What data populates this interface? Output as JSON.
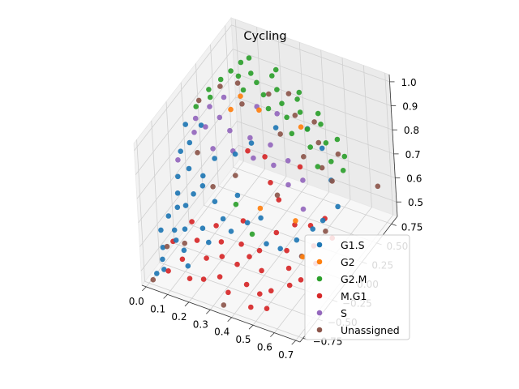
{
  "chart_data": {
    "type": "scatter",
    "projection": "3d",
    "title": "Cycling",
    "xlabel": "",
    "ylabel": "",
    "zlabel": "",
    "xlim": [
      -0.02,
      0.72
    ],
    "ylim": [
      -0.8,
      0.85
    ],
    "zlim": [
      0.44,
      1.03
    ],
    "x_ticks": [
      "0.0",
      "0.1",
      "0.2",
      "0.3",
      "0.4",
      "0.5",
      "0.6",
      "0.7"
    ],
    "x_tick_values": [
      0.0,
      0.1,
      0.2,
      0.3,
      0.4,
      0.5,
      0.6,
      0.7
    ],
    "y_ticks": [
      "−0.75",
      "−0.50",
      "−0.25",
      "0.00",
      "0.25",
      "0.50",
      "0.75"
    ],
    "y_tick_values": [
      -0.75,
      -0.5,
      -0.25,
      0.0,
      0.25,
      0.5,
      0.75
    ],
    "z_ticks": [
      "0.5",
      "0.6",
      "0.7",
      "0.8",
      "0.9",
      "1.0"
    ],
    "z_tick_values": [
      0.5,
      0.6,
      0.7,
      0.8,
      0.9,
      1.0
    ],
    "grid": true,
    "legend_position": "lower-right",
    "series": [
      {
        "name": "G1.S",
        "color": "#1f77b4",
        "points": [
          [
            0.02,
            -0.2,
            0.82
          ],
          [
            0.03,
            -0.3,
            0.75
          ],
          [
            0.04,
            -0.35,
            0.7
          ],
          [
            0.05,
            -0.4,
            0.66
          ],
          [
            0.02,
            -0.45,
            0.63
          ],
          [
            0.06,
            -0.5,
            0.6
          ],
          [
            0.08,
            -0.55,
            0.58
          ],
          [
            0.03,
            -0.6,
            0.55
          ],
          [
            0.1,
            -0.3,
            0.7
          ],
          [
            0.12,
            -0.2,
            0.75
          ],
          [
            0.15,
            -0.1,
            0.8
          ],
          [
            0.05,
            -0.15,
            0.85
          ],
          [
            0.07,
            -0.25,
            0.78
          ],
          [
            0.09,
            -0.4,
            0.68
          ],
          [
            0.11,
            -0.5,
            0.62
          ],
          [
            0.04,
            -0.65,
            0.52
          ],
          [
            0.06,
            -0.7,
            0.5
          ],
          [
            0.02,
            -0.1,
            0.9
          ],
          [
            0.2,
            -0.3,
            0.7
          ],
          [
            0.18,
            -0.45,
            0.63
          ],
          [
            0.22,
            -0.5,
            0.6
          ],
          [
            0.25,
            -0.35,
            0.66
          ],
          [
            0.08,
            -0.05,
            0.9
          ],
          [
            0.13,
            -0.6,
            0.57
          ],
          [
            0.16,
            -0.65,
            0.53
          ],
          [
            0.28,
            -0.2,
            0.72
          ],
          [
            0.3,
            -0.4,
            0.64
          ],
          [
            0.01,
            -0.55,
            0.6
          ],
          [
            0.03,
            -0.72,
            0.48
          ],
          [
            0.14,
            -0.28,
            0.74
          ],
          [
            0.35,
            -0.3,
            0.66
          ],
          [
            0.4,
            -0.25,
            0.68
          ],
          [
            0.45,
            -0.35,
            0.62
          ],
          [
            0.5,
            -0.3,
            0.6
          ],
          [
            0.55,
            -0.2,
            0.62
          ],
          [
            0.6,
            -0.1,
            0.65
          ],
          [
            0.62,
            0.0,
            0.66
          ],
          [
            0.65,
            0.15,
            0.68
          ],
          [
            0.58,
            0.3,
            0.72
          ],
          [
            0.5,
            0.45,
            0.78
          ],
          [
            0.42,
            0.5,
            0.82
          ],
          [
            0.36,
            0.2,
            0.9
          ],
          [
            0.3,
            0.0,
            0.88
          ],
          [
            0.25,
            -0.1,
            0.85
          ]
        ]
      },
      {
        "name": "G2",
        "color": "#ff7f0e",
        "points": [
          [
            0.18,
            0.1,
            0.95
          ],
          [
            0.3,
            0.15,
            0.97
          ],
          [
            0.55,
            -0.2,
            0.7
          ],
          [
            0.4,
            -0.25,
            0.72
          ],
          [
            0.62,
            -0.35,
            0.62
          ],
          [
            0.2,
            0.2,
            0.98
          ],
          [
            0.45,
            0.3,
            0.9
          ]
        ]
      },
      {
        "name": "G2.M",
        "color": "#2ca02c",
        "points": [
          [
            0.05,
            0.2,
            0.96
          ],
          [
            0.08,
            0.3,
            0.98
          ],
          [
            0.1,
            0.4,
            0.99
          ],
          [
            0.12,
            0.5,
            1.0
          ],
          [
            0.15,
            0.35,
            1.0
          ],
          [
            0.18,
            0.45,
            0.99
          ],
          [
            0.2,
            0.25,
            0.99
          ],
          [
            0.22,
            0.4,
            0.98
          ],
          [
            0.25,
            0.55,
            0.97
          ],
          [
            0.28,
            0.3,
            0.98
          ],
          [
            0.3,
            0.45,
            0.96
          ],
          [
            0.33,
            0.2,
            0.97
          ],
          [
            0.35,
            0.35,
            0.95
          ],
          [
            0.38,
            0.5,
            0.93
          ],
          [
            0.4,
            0.25,
            0.94
          ],
          [
            0.42,
            0.4,
            0.92
          ],
          [
            0.45,
            0.15,
            0.92
          ],
          [
            0.48,
            0.3,
            0.9
          ],
          [
            0.5,
            0.45,
            0.88
          ],
          [
            0.52,
            0.2,
            0.87
          ],
          [
            0.55,
            0.35,
            0.85
          ],
          [
            0.58,
            0.1,
            0.84
          ],
          [
            0.6,
            0.25,
            0.82
          ],
          [
            0.62,
            0.4,
            0.8
          ],
          [
            0.03,
            0.05,
            0.93
          ],
          [
            0.07,
            0.15,
            0.95
          ],
          [
            0.13,
            0.6,
            0.99
          ],
          [
            0.24,
            0.65,
            0.96
          ],
          [
            0.36,
            0.6,
            0.92
          ],
          [
            0.46,
            0.55,
            0.88
          ],
          [
            0.56,
            0.5,
            0.82
          ],
          [
            0.64,
            0.3,
            0.78
          ],
          [
            0.3,
            -0.3,
            0.72
          ],
          [
            0.4,
            -0.4,
            0.66
          ]
        ]
      },
      {
        "name": "M.G1",
        "color": "#d62728",
        "points": [
          [
            0.2,
            -0.3,
            0.6
          ],
          [
            0.25,
            -0.4,
            0.58
          ],
          [
            0.3,
            -0.2,
            0.62
          ],
          [
            0.35,
            -0.5,
            0.55
          ],
          [
            0.4,
            -0.3,
            0.56
          ],
          [
            0.45,
            -0.45,
            0.54
          ],
          [
            0.5,
            -0.2,
            0.56
          ],
          [
            0.55,
            -0.35,
            0.55
          ],
          [
            0.6,
            -0.1,
            0.58
          ],
          [
            0.65,
            -0.25,
            0.57
          ],
          [
            0.48,
            -0.6,
            0.5
          ],
          [
            0.52,
            -0.55,
            0.51
          ],
          [
            0.42,
            -0.6,
            0.52
          ],
          [
            0.58,
            -0.45,
            0.52
          ],
          [
            0.62,
            -0.4,
            0.54
          ],
          [
            0.38,
            -0.4,
            0.56
          ],
          [
            0.33,
            -0.35,
            0.58
          ],
          [
            0.28,
            -0.5,
            0.56
          ],
          [
            0.22,
            -0.55,
            0.55
          ],
          [
            0.15,
            -0.45,
            0.57
          ],
          [
            0.12,
            -0.6,
            0.53
          ],
          [
            0.1,
            -0.35,
            0.6
          ],
          [
            0.44,
            -0.15,
            0.6
          ],
          [
            0.5,
            -0.05,
            0.62
          ],
          [
            0.56,
            0.0,
            0.62
          ],
          [
            0.6,
            0.1,
            0.63
          ],
          [
            0.66,
            0.0,
            0.6
          ],
          [
            0.54,
            -0.7,
            0.49
          ],
          [
            0.47,
            -0.72,
            0.48
          ],
          [
            0.36,
            -0.7,
            0.5
          ],
          [
            0.3,
            -0.62,
            0.52
          ],
          [
            0.24,
            -0.68,
            0.51
          ],
          [
            0.18,
            -0.7,
            0.5
          ],
          [
            0.08,
            -0.7,
            0.5
          ],
          [
            0.05,
            -0.5,
            0.55
          ],
          [
            0.4,
            0.05,
            0.66
          ],
          [
            0.35,
            0.1,
            0.7
          ],
          [
            0.3,
            0.2,
            0.76
          ],
          [
            0.25,
            0.1,
            0.8
          ],
          [
            0.45,
            0.25,
            0.75
          ]
        ]
      },
      {
        "name": "S",
        "color": "#9467bd",
        "points": [
          [
            0.04,
            0.0,
            0.9
          ],
          [
            0.06,
            -0.1,
            0.88
          ],
          [
            0.08,
            0.1,
            0.93
          ],
          [
            0.1,
            -0.05,
            0.9
          ],
          [
            0.14,
            0.05,
            0.92
          ],
          [
            0.16,
            -0.15,
            0.86
          ],
          [
            0.2,
            0.0,
            0.9
          ],
          [
            0.24,
            -0.1,
            0.86
          ],
          [
            0.28,
            0.05,
            0.88
          ],
          [
            0.32,
            -0.05,
            0.84
          ],
          [
            0.36,
            0.1,
            0.86
          ],
          [
            0.4,
            0.0,
            0.82
          ],
          [
            0.44,
            0.1,
            0.82
          ],
          [
            0.48,
            -0.05,
            0.78
          ],
          [
            0.52,
            0.05,
            0.78
          ],
          [
            0.56,
            -0.1,
            0.72
          ],
          [
            0.12,
            0.2,
            0.95
          ],
          [
            0.26,
            0.25,
            0.94
          ],
          [
            0.34,
            0.3,
            0.92
          ],
          [
            0.02,
            -0.25,
            0.8
          ]
        ]
      },
      {
        "name": "Unassigned",
        "color": "#8c564b",
        "points": [
          [
            0.03,
            0.1,
            0.94
          ],
          [
            0.09,
            0.25,
            0.97
          ],
          [
            0.16,
            0.3,
            0.99
          ],
          [
            0.22,
            0.15,
            0.97
          ],
          [
            0.29,
            0.35,
            0.97
          ],
          [
            0.34,
            0.5,
            0.94
          ],
          [
            0.41,
            0.35,
            0.92
          ],
          [
            0.47,
            0.45,
            0.88
          ],
          [
            0.53,
            0.3,
            0.86
          ],
          [
            0.59,
            0.4,
            0.8
          ],
          [
            0.63,
            0.15,
            0.78
          ],
          [
            0.66,
            -0.1,
            0.66
          ],
          [
            0.6,
            -0.3,
            0.6
          ],
          [
            0.05,
            -0.6,
            0.56
          ],
          [
            0.02,
            -0.75,
            0.46
          ],
          [
            0.68,
            0.7,
            0.6
          ],
          [
            0.35,
            -0.75,
            0.46
          ],
          [
            0.1,
            -0.2,
            0.84
          ],
          [
            0.18,
            -0.25,
            0.74
          ],
          [
            0.26,
            -0.15,
            0.78
          ],
          [
            0.5,
            0.15,
            0.84
          ],
          [
            0.44,
            -0.1,
            0.74
          ],
          [
            0.38,
            0.2,
            0.88
          ],
          [
            0.57,
            0.2,
            0.8
          ],
          [
            0.12,
            -0.55,
            0.58
          ]
        ]
      }
    ]
  },
  "legend": {
    "items": [
      {
        "label": "G1.S",
        "color": "#1f77b4"
      },
      {
        "label": "G2",
        "color": "#ff7f0e"
      },
      {
        "label": "G2.M",
        "color": "#2ca02c"
      },
      {
        "label": "M.G1",
        "color": "#d62728"
      },
      {
        "label": "S",
        "color": "#9467bd"
      },
      {
        "label": "Unassigned",
        "color": "#8c564b"
      }
    ]
  }
}
